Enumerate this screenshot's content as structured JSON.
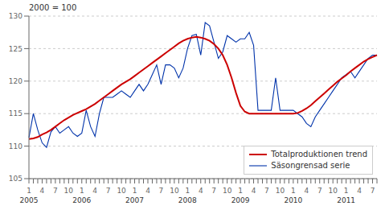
{
  "chart_data": {
    "type": "line",
    "title": "2000 = 100",
    "categories": [
      "1",
      null,
      null,
      "4",
      null,
      null,
      "7",
      null,
      null,
      "10",
      null,
      null,
      "1",
      null,
      null,
      "4",
      null,
      null,
      "7",
      null,
      null,
      "10",
      null,
      null,
      "1",
      null,
      null,
      "4",
      null,
      null,
      "7",
      null,
      null,
      "10",
      null,
      null,
      "1",
      null,
      null,
      "4",
      null,
      null,
      "7",
      null,
      null,
      "10",
      null,
      null,
      "1",
      null,
      null,
      "4",
      null,
      null,
      "7",
      null,
      null,
      "10",
      null,
      null,
      "1",
      null,
      null,
      "4",
      null,
      null,
      "7",
      null,
      null,
      "10",
      null,
      null,
      "1",
      null,
      null,
      "4",
      null,
      null,
      "7",
      null
    ],
    "annotations": [
      {
        "text": "2005",
        "x": 0
      },
      {
        "text": "2006",
        "x": 12
      },
      {
        "text": "2007",
        "x": 24
      },
      {
        "text": "2008",
        "x": 36
      },
      {
        "text": "2009",
        "x": 48
      },
      {
        "text": "2010",
        "x": 60
      },
      {
        "text": "2011",
        "x": 72
      }
    ],
    "series": [
      {
        "name": "Totalproduktionen trend",
        "color": "#cc0000",
        "values": [
          111.1,
          111.2,
          111.4,
          111.8,
          112.1,
          112.5,
          113.0,
          113.5,
          114.0,
          114.4,
          114.8,
          115.1,
          115.4,
          115.7,
          116.1,
          116.5,
          117.0,
          117.5,
          118.0,
          118.5,
          119.0,
          119.5,
          119.9,
          120.3,
          120.8,
          121.3,
          121.8,
          122.3,
          122.8,
          123.3,
          123.8,
          124.3,
          124.8,
          125.3,
          125.8,
          126.2,
          126.5,
          126.7,
          126.8,
          126.7,
          126.5,
          126.2,
          125.7,
          125.0,
          124.0,
          122.5,
          120.5,
          118.2,
          116.2,
          115.3,
          115.0,
          115.0,
          115.0,
          115.0,
          115.0,
          115.0,
          115.0,
          115.0,
          115.0,
          115.0,
          115.0,
          115.1,
          115.4,
          115.8,
          116.3,
          116.9,
          117.5,
          118.1,
          118.7,
          119.3,
          119.9,
          120.4,
          120.9,
          121.5,
          122.0,
          122.5,
          123.0,
          123.4,
          123.7,
          124.0
        ]
      },
      {
        "name": "Säsongrensad serie",
        "color": "#0033aa",
        "values": [
          111.3,
          115.0,
          112.5,
          110.5,
          109.8,
          112.2,
          113.0,
          112.0,
          112.5,
          113.0,
          112.0,
          111.5,
          112.0,
          115.5,
          113.0,
          111.5,
          115.0,
          117.5,
          117.5,
          117.5,
          118.0,
          118.5,
          118.0,
          117.5,
          118.5,
          119.5,
          118.5,
          119.5,
          121.0,
          122.5,
          119.5,
          122.5,
          122.5,
          122.0,
          120.5,
          122.0,
          125.0,
          127.0,
          127.2,
          124.0,
          129.0,
          128.5,
          126.0,
          123.5,
          124.5,
          127.0,
          126.5,
          126.0,
          126.5,
          126.5,
          127.5,
          125.5,
          115.5,
          115.5,
          115.5,
          115.5,
          120.5,
          115.5,
          115.5,
          115.5,
          115.5,
          115.0,
          114.5,
          113.5,
          113.0,
          114.5,
          115.5,
          116.5,
          117.5,
          118.5,
          119.5,
          120.5,
          121.0,
          121.5,
          120.5,
          121.5,
          122.5,
          123.5,
          124.0,
          124.0
        ]
      }
    ],
    "ylim": [
      105,
      130
    ],
    "yticks": [
      105,
      110,
      115,
      120,
      125,
      130
    ],
    "grid": true,
    "legend": "lower right"
  }
}
